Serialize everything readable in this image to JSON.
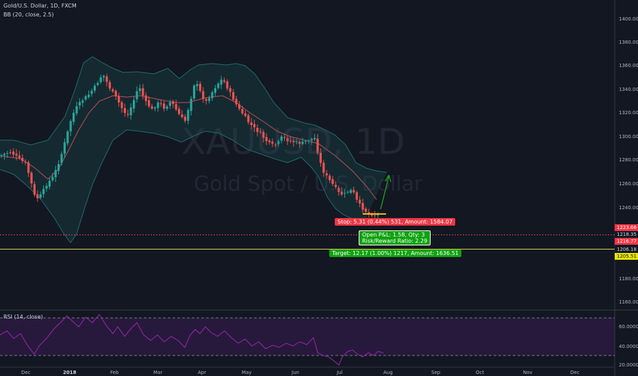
{
  "header": {
    "symbol": "Gold/U.S. Dollar, 1D, FXCM",
    "indicator": "BB (20, close, 2.5)"
  },
  "rsi": {
    "label": "RSI (14, close)",
    "ticks": [
      "60.0000",
      "40.0000",
      "20.0000"
    ]
  },
  "watermark": {
    "symbol": "XAUUSD, 1D",
    "name": "Gold Spot / U.S. Dollar"
  },
  "price_axis": {
    "ticks": [
      "1400.00",
      "1380.00",
      "1360.00",
      "1340.00",
      "1320.00",
      "1300.00",
      "1280.00",
      "1260.00",
      "1240.00",
      "1180.00",
      "1160.00"
    ]
  },
  "price_labels": [
    {
      "text": "1223.66",
      "bg": "#f23645",
      "fg": "#ffffff"
    },
    {
      "text": "1218.35",
      "bg": "#131722",
      "fg": "#d1d4dc"
    },
    {
      "text": "1216.77",
      "bg": "#f23645",
      "fg": "#ffffff"
    },
    {
      "text": "1206.18",
      "bg": "#131722",
      "fg": "#d1d4dc"
    },
    {
      "text": "1205.51",
      "bg": "#e6e600",
      "fg": "#131722"
    }
  ],
  "time_axis": {
    "ticks": [
      "Dec",
      "2018",
      "Feb",
      "Mar",
      "Apr",
      "May",
      "Jun",
      "Jul",
      "Aug",
      "Sep",
      "Oct",
      "Nov",
      "Dec"
    ]
  },
  "position": {
    "stop": "Stop: 5.31 (0.44%) 531, Amount: 1584.07",
    "open_pl": "Open P&L: 1.58, Qty: 3",
    "risk_reward": "Risk/Reward Ratio: 2.29",
    "target": "Target: 12.17 (1.00%) 1217, Amount: 1636.51"
  },
  "colors": {
    "background": "#131722",
    "up": "#26a69a",
    "down": "#ef5350",
    "band": "#1f6f6b",
    "basis": "#e0575f",
    "rsi": "#9c27b0",
    "stop": "#f23645",
    "target": "#10a310",
    "arrow": "#1fa51f",
    "entry": "#e6c400"
  }
}
